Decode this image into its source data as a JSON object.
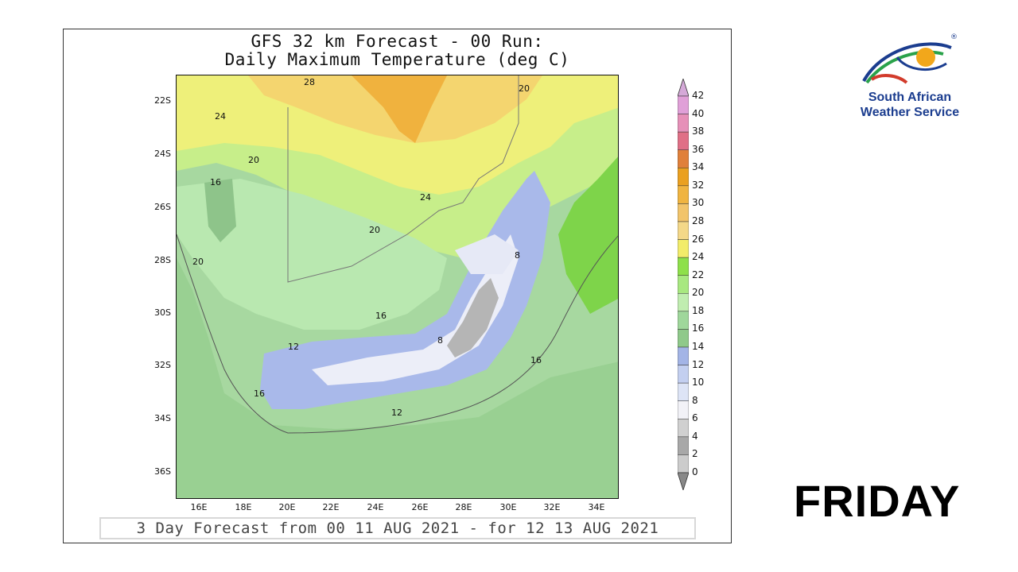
{
  "panel": {
    "title_line1": "GFS 32 km Forecast - 00 Run:",
    "title_line2": "Daily Maximum Temperature (deg C)",
    "footer": "3 Day Forecast from 00 11 AUG 2021 - for 12 13 AUG 2021"
  },
  "map": {
    "lat_labels": [
      "22S",
      "24S",
      "26S",
      "28S",
      "30S",
      "32S",
      "34S",
      "36S"
    ],
    "lon_labels": [
      "16E",
      "18E",
      "20E",
      "22E",
      "24E",
      "26E",
      "28E",
      "30E",
      "32E",
      "34E"
    ],
    "contour_labels": [
      "28",
      "20",
      "24",
      "20",
      "16",
      "24",
      "20",
      "20",
      "8",
      "16",
      "12",
      "8",
      "16",
      "16",
      "12"
    ]
  },
  "colorbar": {
    "levels": [
      "42",
      "40",
      "38",
      "36",
      "34",
      "32",
      "30",
      "28",
      "26",
      "24",
      "22",
      "20",
      "18",
      "16",
      "14",
      "12",
      "10",
      "8",
      "6",
      "4",
      "2",
      "0"
    ],
    "colors": {
      "40": "#e0a0d8",
      "38": "#e690b8",
      "36": "#e06f86",
      "34": "#e0803a",
      "32": "#eaa020",
      "30": "#f0b440",
      "28": "#f2c46a",
      "26": "#f4d888",
      "24": "#f2ec6a",
      "22": "#8ee04a",
      "20": "#a8e880",
      "18": "#c0edb0",
      "16": "#9fd79b",
      "14": "#8fc98a",
      "12": "#a3b4e6",
      "10": "#c3cff0",
      "8": "#dde4f6",
      "6": "#f2f2f7",
      "4": "#d0d0d0",
      "2": "#a8a8a8"
    }
  },
  "logo": {
    "line1": "South African",
    "line2": "Weather Service",
    "registered": "®"
  },
  "day_label": "FRIDAY"
}
